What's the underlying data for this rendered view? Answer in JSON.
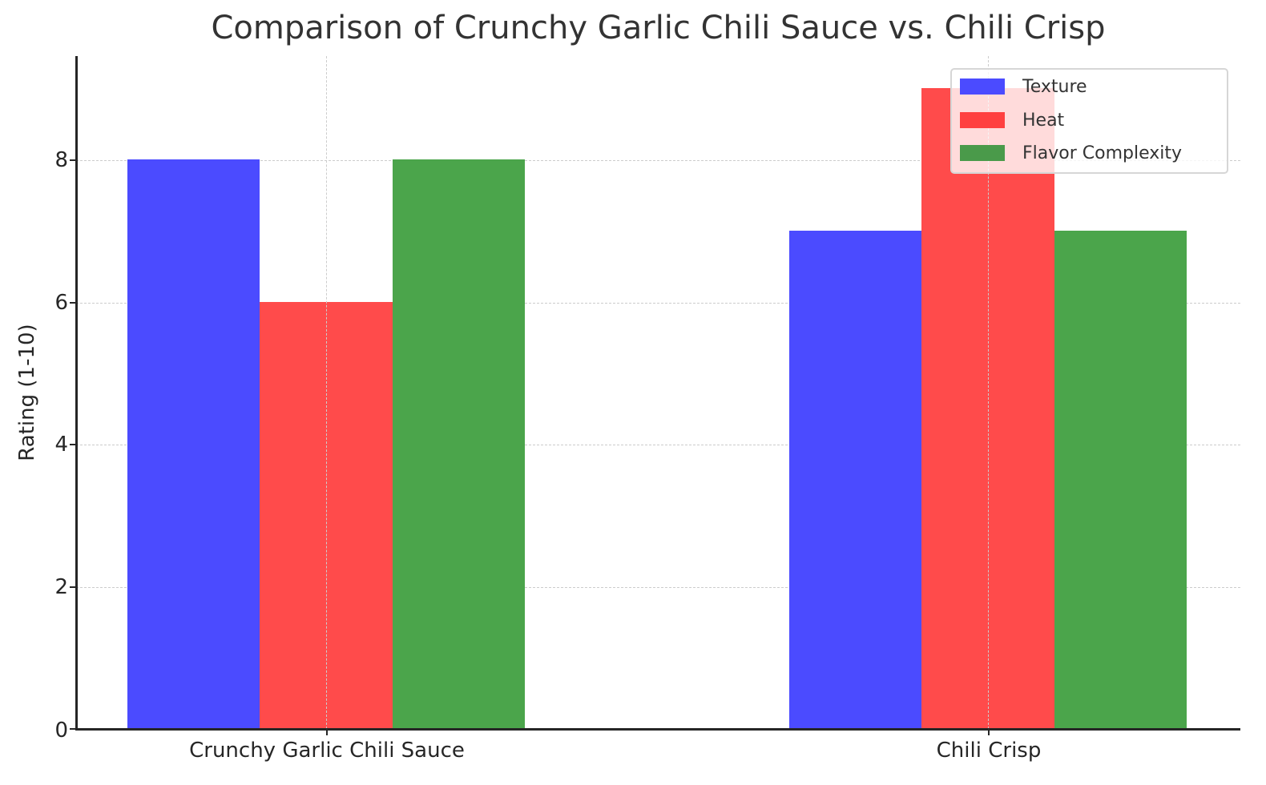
{
  "chart_data": {
    "type": "bar",
    "title": "Comparison of Crunchy Garlic Chili Sauce vs. Chili Crisp",
    "xlabel": "",
    "ylabel": "Rating (1-10)",
    "categories": [
      "Crunchy Garlic Chili Sauce",
      "Chili Crisp"
    ],
    "series": [
      {
        "name": "Texture",
        "color": "#4b4bff",
        "values": [
          8,
          7
        ]
      },
      {
        "name": "Heat",
        "color": "#ff4b4b",
        "values": [
          6,
          9
        ]
      },
      {
        "name": "Flavor Complexity",
        "color": "#4ba54b",
        "values": [
          8,
          7
        ]
      }
    ],
    "ylim": [
      0,
      9.45
    ],
    "yticks": [
      0,
      2,
      4,
      6,
      8
    ],
    "grid": true,
    "grid_style": "dashed",
    "legend_position": "upper right"
  },
  "labels": {
    "title": "Comparison of Crunchy Garlic Chili Sauce vs. Chili Crisp",
    "ylabel": "Rating (1-10)",
    "yticks": [
      "0",
      "2",
      "4",
      "6",
      "8"
    ],
    "xticks": [
      "Crunchy Garlic Chili Sauce",
      "Chili Crisp"
    ],
    "legend": [
      "Texture",
      "Heat",
      "Flavor Complexity"
    ]
  }
}
